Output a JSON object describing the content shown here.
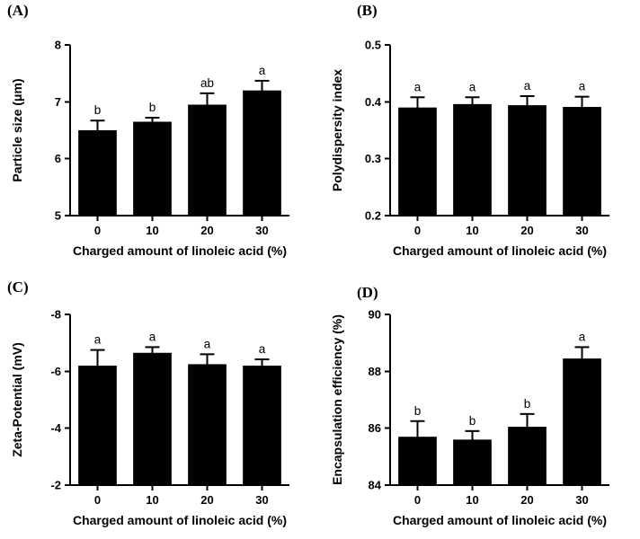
{
  "figure": {
    "background": "#ffffff",
    "bar_color": "#000000",
    "axis_color": "#000000",
    "error_bar_color": "#000000",
    "panel_labels": [
      "(A)",
      "(B)",
      "(C)",
      "(D)"
    ]
  },
  "chart_data": [
    {
      "panel": "(A)",
      "type": "bar",
      "title": "",
      "xlabel": "Charged amount of linoleic acid (%)",
      "ylabel": "Particle size (μm)",
      "categories": [
        "0",
        "10",
        "20",
        "30"
      ],
      "values": [
        6.5,
        6.65,
        6.95,
        7.2
      ],
      "errors": [
        0.17,
        0.07,
        0.2,
        0.17
      ],
      "sig_letters": [
        "b",
        "b",
        "ab",
        "a"
      ],
      "ylim": [
        5,
        8
      ],
      "yticks": [
        5,
        6,
        7,
        8
      ],
      "ytick_labels": [
        "5",
        "6",
        "7",
        "8"
      ],
      "grid": false,
      "legend": null
    },
    {
      "panel": "(B)",
      "type": "bar",
      "title": "",
      "xlabel": "Charged amount of linoleic acid (%)",
      "ylabel": "Polydispersity index",
      "categories": [
        "0",
        "10",
        "20",
        "30"
      ],
      "values": [
        0.39,
        0.396,
        0.394,
        0.391
      ],
      "errors": [
        0.018,
        0.012,
        0.016,
        0.018
      ],
      "sig_letters": [
        "a",
        "a",
        "a",
        "a"
      ],
      "ylim": [
        0.2,
        0.5
      ],
      "yticks": [
        0.2,
        0.3,
        0.4,
        0.5
      ],
      "ytick_labels": [
        "0.2",
        "0.3",
        "0.4",
        "0.5"
      ],
      "grid": false,
      "legend": null
    },
    {
      "panel": "(C)",
      "type": "bar",
      "title": "",
      "xlabel": "Charged amount of linoleic acid (%)",
      "ylabel": "Zeta-Potential (mV)",
      "categories": [
        "0",
        "10",
        "20",
        "30"
      ],
      "values": [
        -6.2,
        -6.65,
        -6.25,
        -6.2
      ],
      "errors": [
        0.55,
        0.2,
        0.35,
        0.22
      ],
      "sig_letters": [
        "a",
        "a",
        "a",
        "a"
      ],
      "ylim": [
        -2,
        -8
      ],
      "yticks": [
        -2,
        -4,
        -6,
        -8
      ],
      "ytick_labels": [
        "-2",
        "-4",
        "-6",
        "-8"
      ],
      "grid": false,
      "legend": null
    },
    {
      "panel": "(D)",
      "type": "bar",
      "title": "",
      "xlabel": "Charged amount of linoleic acid (%)",
      "ylabel": "Encapsulation efficiency (%)",
      "categories": [
        "0",
        "10",
        "20",
        "30"
      ],
      "values": [
        85.7,
        85.6,
        86.05,
        88.45
      ],
      "errors": [
        0.55,
        0.3,
        0.45,
        0.4
      ],
      "sig_letters": [
        "b",
        "b",
        "b",
        "a"
      ],
      "ylim": [
        84,
        90
      ],
      "yticks": [
        84,
        86,
        88,
        90
      ],
      "ytick_labels": [
        "84",
        "86",
        "88",
        "90"
      ],
      "grid": false,
      "legend": null
    }
  ]
}
